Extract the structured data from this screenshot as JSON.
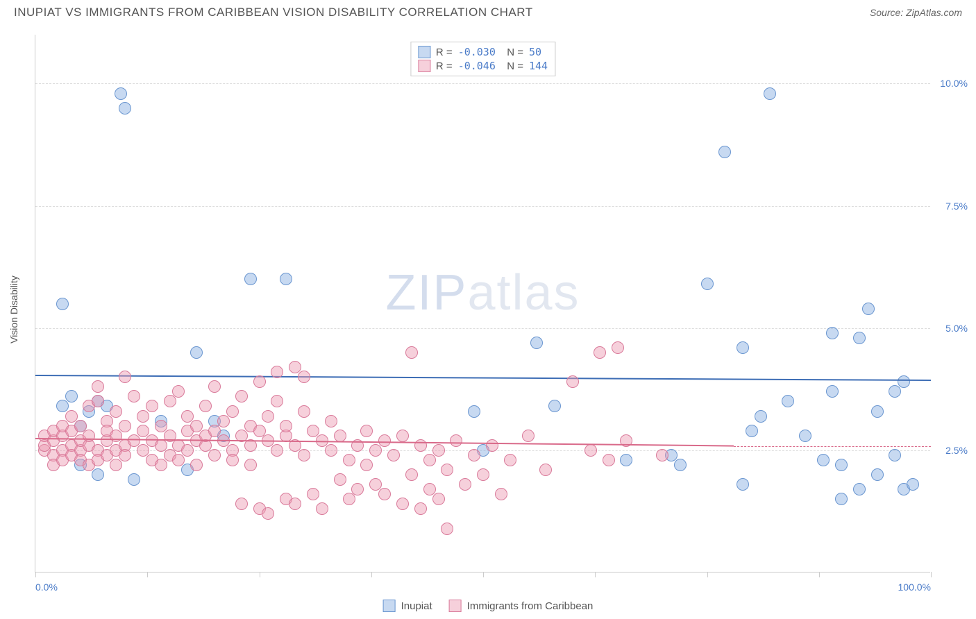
{
  "title": "INUPIAT VS IMMIGRANTS FROM CARIBBEAN VISION DISABILITY CORRELATION CHART",
  "source_prefix": "Source: ",
  "source_name": "ZipAtlas.com",
  "y_axis_label": "Vision Disability",
  "watermark_zip": "ZIP",
  "watermark_atlas": "atlas",
  "chart": {
    "type": "scatter",
    "background_color": "#ffffff",
    "grid_color": "#dddddd",
    "axis_color": "#cccccc",
    "xlim": [
      0,
      100
    ],
    "ylim": [
      0,
      11
    ],
    "x_ticks": [
      0,
      12.5,
      25,
      37.5,
      50,
      62.5,
      75,
      87.5,
      100
    ],
    "x_tick_labels": {
      "0": "0.0%",
      "100": "100.0%"
    },
    "y_ticks": [
      2.5,
      5.0,
      7.5,
      10.0
    ],
    "y_tick_labels": {
      "2.5": "2.5%",
      "5.0": "5.0%",
      "7.5": "7.5%",
      "10.0": "10.0%"
    },
    "label_color": "#4a7bc8",
    "label_fontsize": 14,
    "point_radius": 9,
    "point_opacity": 0.55,
    "series": [
      {
        "name": "Inupiat",
        "color_fill": "rgba(130,170,225,0.45)",
        "color_stroke": "#6a96d0",
        "r_label": "R =",
        "r_value": "-0.030",
        "n_label": "N =",
        "n_value": " 50",
        "trend": {
          "x1": 0,
          "y1": 4.05,
          "x2": 100,
          "y2": 3.95,
          "color": "#3d6db5",
          "width": 2
        },
        "points": [
          [
            3,
            5.5
          ],
          [
            4,
            3.6
          ],
          [
            5,
            2.2
          ],
          [
            6,
            3.3
          ],
          [
            7,
            3.5
          ],
          [
            7,
            2.0
          ],
          [
            8,
            3.4
          ],
          [
            9.5,
            9.8
          ],
          [
            10,
            9.5
          ],
          [
            11,
            1.9
          ],
          [
            17,
            2.1
          ],
          [
            18,
            4.5
          ],
          [
            21,
            2.8
          ],
          [
            24,
            6.0
          ],
          [
            28,
            6.0
          ],
          [
            49,
            3.3
          ],
          [
            50,
            2.5
          ],
          [
            56,
            4.7
          ],
          [
            58,
            3.4
          ],
          [
            66,
            2.3
          ],
          [
            71,
            2.4
          ],
          [
            72,
            2.2
          ],
          [
            75,
            5.9
          ],
          [
            77,
            8.6
          ],
          [
            79,
            4.6
          ],
          [
            79,
            1.8
          ],
          [
            80,
            2.9
          ],
          [
            81,
            3.2
          ],
          [
            82,
            9.8
          ],
          [
            84,
            3.5
          ],
          [
            86,
            2.8
          ],
          [
            88,
            2.3
          ],
          [
            89,
            4.9
          ],
          [
            89,
            3.7
          ],
          [
            90,
            2.2
          ],
          [
            90,
            1.5
          ],
          [
            92,
            4.8
          ],
          [
            92,
            1.7
          ],
          [
            93,
            5.4
          ],
          [
            94,
            2.0
          ],
          [
            94,
            3.3
          ],
          [
            96,
            3.7
          ],
          [
            96,
            2.4
          ],
          [
            97,
            3.9
          ],
          [
            97,
            1.7
          ],
          [
            98,
            1.8
          ],
          [
            3,
            3.4
          ],
          [
            5,
            3.0
          ],
          [
            14,
            3.1
          ],
          [
            20,
            3.1
          ]
        ]
      },
      {
        "name": "Immigrants from Caribbean",
        "color_fill": "rgba(235,150,175,0.45)",
        "color_stroke": "#d97a9a",
        "r_label": "R =",
        "r_value": "-0.046",
        "n_label": "N =",
        "n_value": "144",
        "trend": {
          "x1": 0,
          "y1": 2.75,
          "x2": 78,
          "y2": 2.6,
          "color": "#d96a8a",
          "width": 2,
          "dash_ext": {
            "x1": 78,
            "x2": 100,
            "y": 2.58
          }
        },
        "points": [
          [
            1,
            2.5
          ],
          [
            1,
            2.6
          ],
          [
            1,
            2.8
          ],
          [
            2,
            2.4
          ],
          [
            2,
            2.7
          ],
          [
            2,
            2.9
          ],
          [
            2,
            2.2
          ],
          [
            3,
            2.5
          ],
          [
            3,
            2.8
          ],
          [
            3,
            3.0
          ],
          [
            3,
            2.3
          ],
          [
            4,
            2.6
          ],
          [
            4,
            2.4
          ],
          [
            4,
            2.9
          ],
          [
            4,
            3.2
          ],
          [
            5,
            2.5
          ],
          [
            5,
            2.7
          ],
          [
            5,
            2.3
          ],
          [
            5,
            3.0
          ],
          [
            6,
            3.4
          ],
          [
            6,
            2.6
          ],
          [
            6,
            2.2
          ],
          [
            6,
            2.8
          ],
          [
            7,
            2.5
          ],
          [
            7,
            3.5
          ],
          [
            7,
            2.3
          ],
          [
            7,
            3.8
          ],
          [
            8,
            2.7
          ],
          [
            8,
            2.4
          ],
          [
            8,
            3.1
          ],
          [
            8,
            2.9
          ],
          [
            9,
            2.5
          ],
          [
            9,
            3.3
          ],
          [
            9,
            2.2
          ],
          [
            9,
            2.8
          ],
          [
            10,
            2.6
          ],
          [
            10,
            4.0
          ],
          [
            10,
            2.4
          ],
          [
            10,
            3.0
          ],
          [
            11,
            2.7
          ],
          [
            11,
            3.6
          ],
          [
            12,
            2.5
          ],
          [
            12,
            2.9
          ],
          [
            12,
            3.2
          ],
          [
            13,
            2.3
          ],
          [
            13,
            2.7
          ],
          [
            13,
            3.4
          ],
          [
            14,
            2.6
          ],
          [
            14,
            2.2
          ],
          [
            14,
            3.0
          ],
          [
            15,
            3.5
          ],
          [
            15,
            2.8
          ],
          [
            15,
            2.4
          ],
          [
            16,
            2.6
          ],
          [
            16,
            3.7
          ],
          [
            16,
            2.3
          ],
          [
            17,
            2.9
          ],
          [
            17,
            3.2
          ],
          [
            17,
            2.5
          ],
          [
            18,
            2.7
          ],
          [
            18,
            3.0
          ],
          [
            18,
            2.2
          ],
          [
            19,
            3.4
          ],
          [
            19,
            2.6
          ],
          [
            19,
            2.8
          ],
          [
            20,
            3.8
          ],
          [
            20,
            2.4
          ],
          [
            20,
            2.9
          ],
          [
            21,
            2.7
          ],
          [
            21,
            3.1
          ],
          [
            22,
            2.5
          ],
          [
            22,
            3.3
          ],
          [
            22,
            2.3
          ],
          [
            23,
            2.8
          ],
          [
            23,
            1.4
          ],
          [
            23,
            3.6
          ],
          [
            24,
            2.6
          ],
          [
            24,
            2.2
          ],
          [
            24,
            3.0
          ],
          [
            25,
            2.9
          ],
          [
            25,
            3.9
          ],
          [
            25,
            1.3
          ],
          [
            26,
            2.7
          ],
          [
            26,
            1.2
          ],
          [
            26,
            3.2
          ],
          [
            27,
            2.5
          ],
          [
            27,
            3.5
          ],
          [
            27,
            4.1
          ],
          [
            28,
            2.8
          ],
          [
            28,
            1.5
          ],
          [
            28,
            3.0
          ],
          [
            29,
            4.2
          ],
          [
            29,
            2.6
          ],
          [
            29,
            1.4
          ],
          [
            30,
            3.3
          ],
          [
            30,
            2.4
          ],
          [
            30,
            4.0
          ],
          [
            31,
            2.9
          ],
          [
            31,
            1.6
          ],
          [
            32,
            2.7
          ],
          [
            32,
            1.3
          ],
          [
            33,
            3.1
          ],
          [
            33,
            2.5
          ],
          [
            34,
            1.9
          ],
          [
            34,
            2.8
          ],
          [
            35,
            2.3
          ],
          [
            35,
            1.5
          ],
          [
            36,
            2.6
          ],
          [
            36,
            1.7
          ],
          [
            37,
            2.9
          ],
          [
            37,
            2.2
          ],
          [
            38,
            1.8
          ],
          [
            38,
            2.5
          ],
          [
            39,
            2.7
          ],
          [
            39,
            1.6
          ],
          [
            40,
            2.4
          ],
          [
            41,
            2.8
          ],
          [
            41,
            1.4
          ],
          [
            42,
            4.5
          ],
          [
            42,
            2.0
          ],
          [
            43,
            2.6
          ],
          [
            43,
            1.3
          ],
          [
            44,
            2.3
          ],
          [
            44,
            1.7
          ],
          [
            45,
            2.5
          ],
          [
            45,
            1.5
          ],
          [
            46,
            2.1
          ],
          [
            46,
            0.9
          ],
          [
            47,
            2.7
          ],
          [
            48,
            1.8
          ],
          [
            49,
            2.4
          ],
          [
            50,
            2.0
          ],
          [
            51,
            2.6
          ],
          [
            52,
            1.6
          ],
          [
            53,
            2.3
          ],
          [
            55,
            2.8
          ],
          [
            57,
            2.1
          ],
          [
            60,
            3.9
          ],
          [
            62,
            2.5
          ],
          [
            63,
            4.5
          ],
          [
            64,
            2.3
          ],
          [
            65,
            4.6
          ],
          [
            66,
            2.7
          ],
          [
            70,
            2.4
          ]
        ]
      }
    ]
  }
}
